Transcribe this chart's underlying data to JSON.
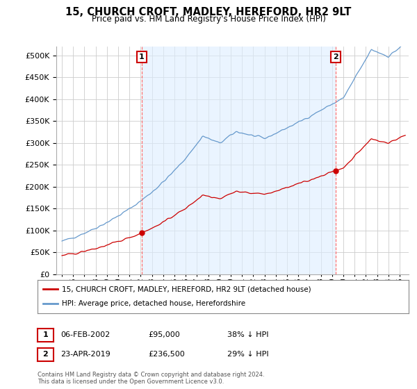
{
  "title": "15, CHURCH CROFT, MADLEY, HEREFORD, HR2 9LT",
  "subtitle": "Price paid vs. HM Land Registry's House Price Index (HPI)",
  "legend_line1": "15, CHURCH CROFT, MADLEY, HEREFORD, HR2 9LT (detached house)",
  "legend_line2": "HPI: Average price, detached house, Herefordshire",
  "annotation1_date": "06-FEB-2002",
  "annotation1_price": "£95,000",
  "annotation1_hpi": "38% ↓ HPI",
  "annotation2_date": "23-APR-2019",
  "annotation2_price": "£236,500",
  "annotation2_hpi": "29% ↓ HPI",
  "footer": "Contains HM Land Registry data © Crown copyright and database right 2024.\nThis data is licensed under the Open Government Licence v3.0.",
  "sale1_year": 2002.09,
  "sale1_value": 95000,
  "sale2_year": 2019.31,
  "sale2_value": 236500,
  "property_color": "#cc0000",
  "hpi_color": "#6699cc",
  "hpi_fill_color": "#ddeeff",
  "vline_color": "#ff6666",
  "annotation_box_color": "#cc0000",
  "background_color": "#ffffff",
  "grid_color": "#cccccc",
  "ylim_min": 0,
  "ylim_max": 520000,
  "xlim_min": 1994.5,
  "xlim_max": 2025.8
}
